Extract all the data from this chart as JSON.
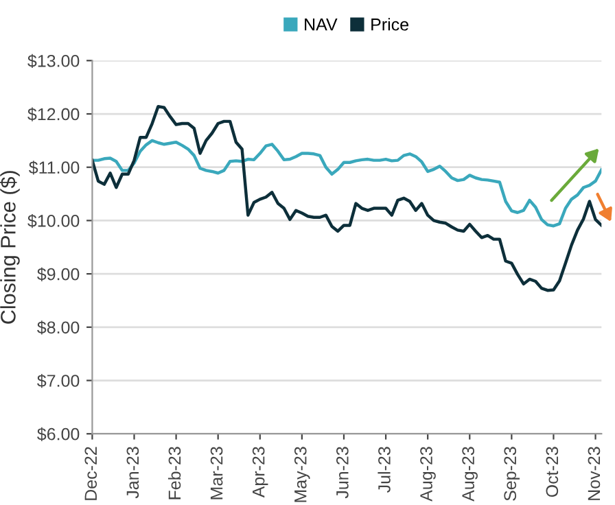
{
  "chart_data": {
    "type": "line",
    "ylabel": "Closing Price ($)",
    "categories": [
      "Dec-22",
      null,
      null,
      null,
      null,
      null,
      null,
      "Jan-23",
      null,
      null,
      null,
      null,
      null,
      null,
      "Feb-23",
      null,
      null,
      null,
      null,
      null,
      null,
      "Mar-23",
      null,
      null,
      null,
      null,
      null,
      null,
      "Apr-23",
      null,
      null,
      null,
      null,
      null,
      null,
      "May-23",
      null,
      null,
      null,
      null,
      null,
      null,
      "Jun-23",
      null,
      null,
      null,
      null,
      null,
      null,
      "Jul-23",
      null,
      null,
      null,
      null,
      null,
      null,
      "Aug-23",
      null,
      null,
      null,
      null,
      null,
      null,
      "Aug-23",
      null,
      null,
      null,
      null,
      null,
      null,
      "Sep-23",
      null,
      null,
      null,
      null,
      null,
      null,
      "Oct-23",
      null,
      null,
      null,
      null,
      null,
      null,
      "Nov-23",
      null
    ],
    "ylim": [
      6,
      13
    ],
    "yticks": [
      {
        "value": 6,
        "label": "$6.00"
      },
      {
        "value": 7,
        "label": "$7.00"
      },
      {
        "value": 8,
        "label": "$8.00"
      },
      {
        "value": 9,
        "label": "$9.00"
      },
      {
        "value": 10,
        "label": "$10.00"
      },
      {
        "value": 11,
        "label": "$11.00"
      },
      {
        "value": 12,
        "label": "$12.00"
      },
      {
        "value": 13,
        "label": "$13.00"
      }
    ],
    "grid": "y",
    "legend": "top",
    "marker": "none",
    "line_style": "solid",
    "series": [
      {
        "name": "NAV",
        "color": "#3aa8bc",
        "values": [
          11.13,
          11.13,
          11.16,
          11.17,
          11.11,
          10.94,
          10.94,
          11.08,
          11.3,
          11.42,
          11.5,
          11.46,
          11.43,
          11.45,
          11.47,
          11.41,
          11.34,
          11.22,
          10.98,
          10.94,
          10.92,
          10.89,
          10.94,
          11.11,
          11.12,
          11.11,
          11.15,
          11.14,
          11.26,
          11.4,
          11.43,
          11.3,
          11.14,
          11.15,
          11.2,
          11.26,
          11.26,
          11.25,
          11.22,
          11.0,
          10.87,
          10.96,
          11.09,
          11.09,
          11.12,
          11.14,
          11.15,
          11.13,
          11.13,
          11.15,
          11.12,
          11.13,
          11.22,
          11.25,
          11.2,
          11.1,
          10.92,
          10.96,
          11.02,
          10.92,
          10.8,
          10.75,
          10.77,
          10.85,
          10.8,
          10.77,
          10.76,
          10.74,
          10.72,
          10.36,
          10.18,
          10.15,
          10.19,
          10.38,
          10.25,
          10.02,
          9.92,
          9.9,
          9.94,
          10.23,
          10.4,
          10.48,
          10.62,
          10.66,
          10.74,
          10.95
        ]
      },
      {
        "name": "Price",
        "color": "#0d2f3a",
        "values": [
          11.13,
          10.74,
          10.68,
          10.89,
          10.62,
          10.87,
          10.87,
          11.13,
          11.56,
          11.56,
          11.82,
          12.14,
          12.12,
          11.95,
          11.8,
          11.82,
          11.82,
          11.73,
          11.26,
          11.5,
          11.64,
          11.82,
          11.86,
          11.86,
          11.47,
          11.34,
          10.1,
          10.34,
          10.4,
          10.44,
          10.53,
          10.32,
          10.23,
          10.02,
          10.19,
          10.14,
          10.08,
          10.06,
          10.06,
          10.1,
          9.89,
          9.8,
          9.91,
          9.91,
          10.32,
          10.23,
          10.19,
          10.23,
          10.23,
          10.23,
          10.1,
          10.38,
          10.42,
          10.36,
          10.19,
          10.32,
          10.1,
          10.0,
          9.97,
          9.95,
          9.88,
          9.82,
          9.8,
          9.93,
          9.8,
          9.68,
          9.72,
          9.65,
          9.65,
          9.24,
          9.2,
          8.99,
          8.81,
          8.9,
          8.86,
          8.73,
          8.69,
          8.7,
          8.87,
          9.2,
          9.54,
          9.82,
          10.03,
          10.36,
          10.02,
          9.91
        ]
      }
    ]
  }
}
